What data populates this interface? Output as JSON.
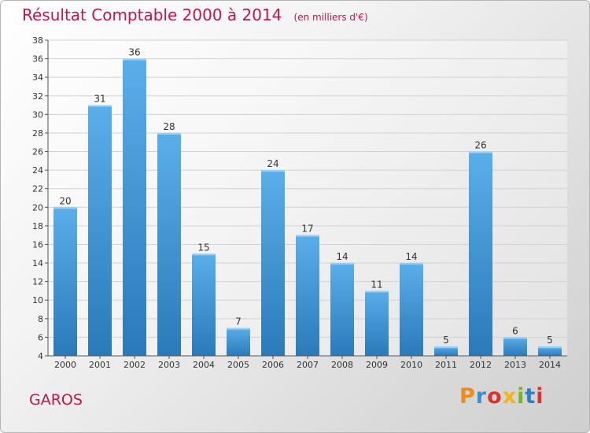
{
  "title": "Résultat Comptable 2000 à 2014",
  "subtitle": "(en milliers d'€)",
  "location": "GAROS",
  "logo": {
    "letters": [
      "P",
      "r",
      "o",
      "x",
      "i",
      "t",
      "i"
    ],
    "colors": [
      "#f08a1c",
      "#3a8fd6",
      "#e0302a",
      "#f2b418",
      "#7ab51d",
      "#2d7ec8",
      "#e0302a"
    ]
  },
  "colors": {
    "bar_light": "#5aaee9",
    "bar_dark": "#2a7ab9",
    "title": "#c0154a"
  },
  "chart_data": {
    "type": "bar",
    "categories": [
      "2000",
      "2001",
      "2002",
      "2003",
      "2004",
      "2005",
      "2006",
      "2007",
      "2008",
      "2009",
      "2010",
      "2011",
      "2012",
      "2013",
      "2014"
    ],
    "values": [
      20,
      31,
      36,
      28,
      15,
      7,
      24,
      17,
      14,
      11,
      14,
      5,
      26,
      6,
      5
    ],
    "ylim": [
      4,
      38
    ],
    "yticks": [
      4,
      6,
      8,
      10,
      12,
      14,
      16,
      18,
      20,
      22,
      24,
      26,
      28,
      30,
      32,
      34,
      36,
      38
    ],
    "grid": true,
    "data_labels": true
  }
}
